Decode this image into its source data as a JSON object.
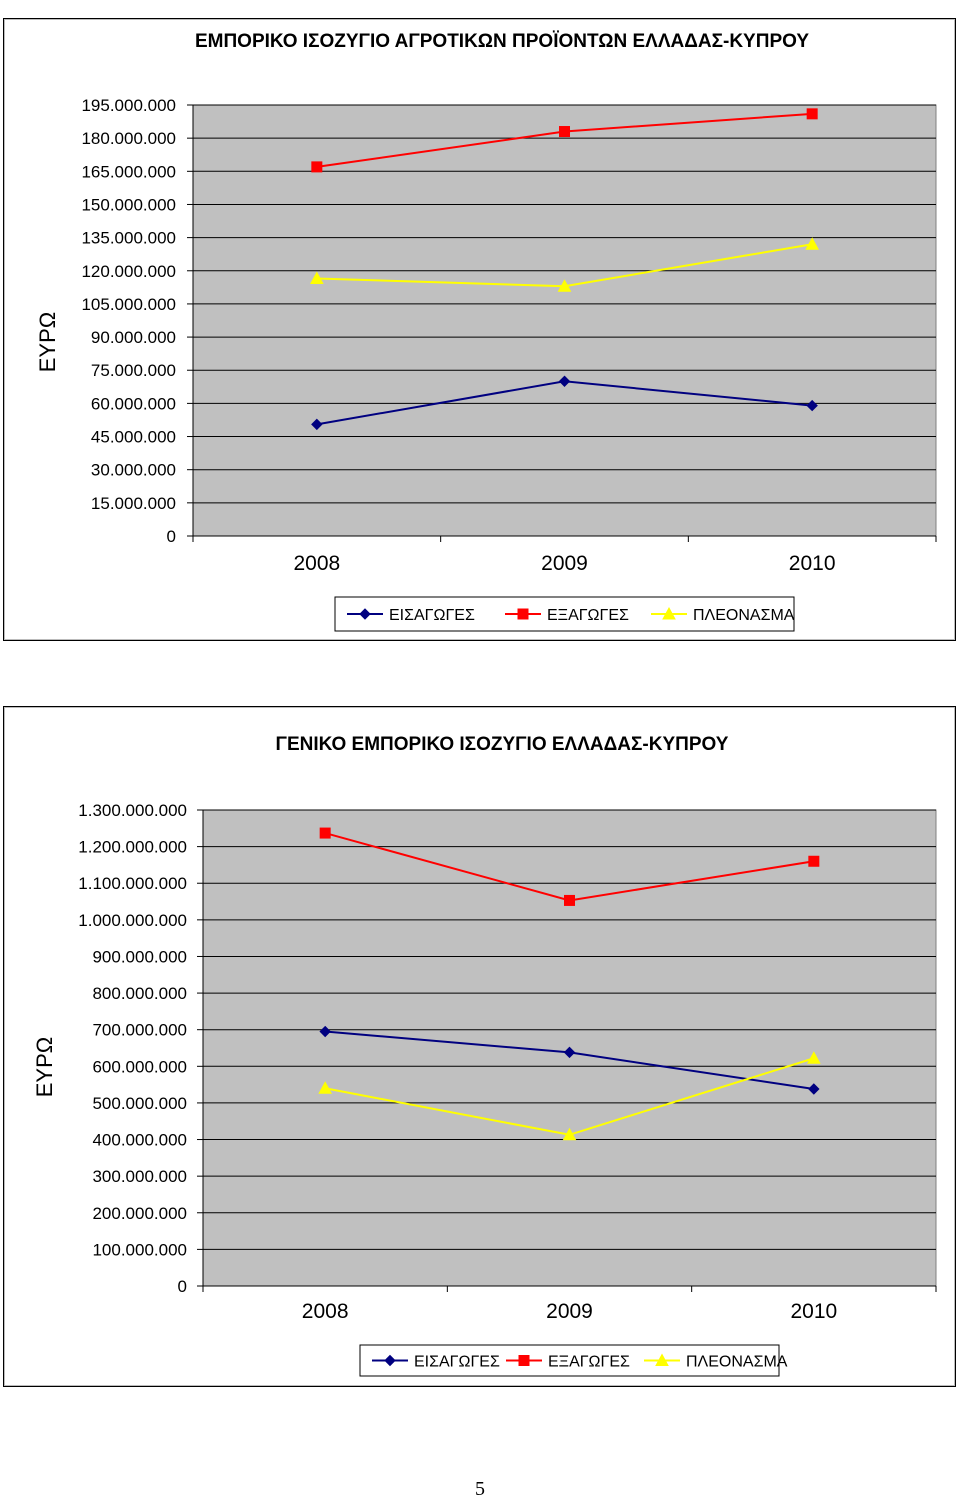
{
  "page": {
    "number": "5"
  },
  "chart_data": [
    {
      "type": "line",
      "title": "ΕΜΠΟΡΙΚΟ ΙΣΟΖΥΓΙΟ ΑΓΡΟΤΙΚΩΝ ΠΡΟΪΟΝΤΩΝ ΕΛΛΑΔΑΣ-ΚΥΠΡΟΥ",
      "ylabel": "ΕΥΡΩ",
      "xlabel": "",
      "categories": [
        "2008",
        "2009",
        "2010"
      ],
      "ylim": [
        0,
        195000000
      ],
      "yticks": [
        0,
        15000000,
        30000000,
        45000000,
        60000000,
        75000000,
        90000000,
        105000000,
        120000000,
        135000000,
        150000000,
        165000000,
        180000000,
        195000000
      ],
      "ytick_labels": [
        "0",
        "15.000.000",
        "30.000.000",
        "45.000.000",
        "60.000.000",
        "75.000.000",
        "90.000.000",
        "105.000.000",
        "120.000.000",
        "135.000.000",
        "150.000.000",
        "165.000.000",
        "180.000.000",
        "195.000.000"
      ],
      "grid": true,
      "plot_background": "#c0c0c0",
      "legend": "bottom-center",
      "series": [
        {
          "name": "ΕΙΣΑΓΩΓΕΣ",
          "values": [
            50500000,
            70000000,
            59000000
          ],
          "color": "#000080",
          "marker": "diamond"
        },
        {
          "name": "ΕΞΑΓΩΓΕΣ",
          "values": [
            167000000,
            183000000,
            191000000
          ],
          "color": "#ff0000",
          "marker": "square"
        },
        {
          "name": "ΠΛΕΟΝΑΣΜΑ",
          "values": [
            116500000,
            113000000,
            132000000
          ],
          "color": "#ffff00",
          "marker": "triangle"
        }
      ]
    },
    {
      "type": "line",
      "title": "ΓΕΝΙΚΟ ΕΜΠΟΡΙΚΟ ΙΣΟΖΥΓΙΟ ΕΛΛΑΔΑΣ-ΚΥΠΡΟΥ",
      "ylabel": "ΕΥΡΩ",
      "xlabel": "",
      "categories": [
        "2008",
        "2009",
        "2010"
      ],
      "ylim": [
        0,
        1300000000
      ],
      "yticks": [
        0,
        100000000,
        200000000,
        300000000,
        400000000,
        500000000,
        600000000,
        700000000,
        800000000,
        900000000,
        1000000000,
        1100000000,
        1200000000,
        1300000000
      ],
      "ytick_labels": [
        "0",
        "100.000.000",
        "200.000.000",
        "300.000.000",
        "400.000.000",
        "500.000.000",
        "600.000.000",
        "700.000.000",
        "800.000.000",
        "900.000.000",
        "1.000.000.000",
        "1.100.000.000",
        "1.200.000.000",
        "1.300.000.000"
      ],
      "grid": true,
      "plot_background": "#c0c0c0",
      "legend": "bottom-center",
      "series": [
        {
          "name": "ΕΙΣΑΓΩΓΕΣ",
          "values": [
            695000000,
            638000000,
            538000000
          ],
          "color": "#000080",
          "marker": "diamond"
        },
        {
          "name": "ΕΞΑΓΩΓΕΣ",
          "values": [
            1237000000,
            1053000000,
            1160000000
          ],
          "color": "#ff0000",
          "marker": "square"
        },
        {
          "name": "ΠΛΕΟΝΑΣΜΑ",
          "values": [
            540000000,
            413000000,
            622000000
          ],
          "color": "#ffff00",
          "marker": "triangle"
        }
      ]
    }
  ]
}
